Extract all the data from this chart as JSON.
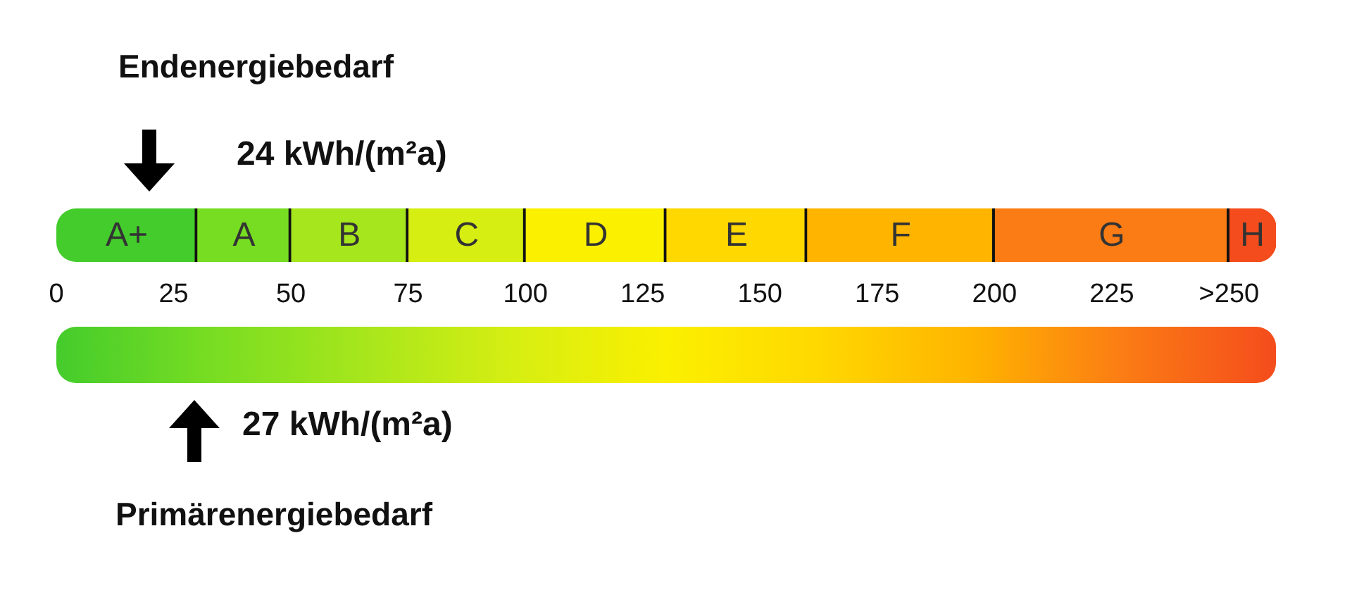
{
  "chart_data": {
    "type": "bar",
    "orientation": "horizontal",
    "stacked": true,
    "categories": [
      null
    ],
    "xlim": [
      0,
      260
    ],
    "xticks": [
      0,
      25,
      50,
      75,
      100,
      125,
      150,
      175,
      200,
      225,
      {
        "value": 250,
        "label": ">250"
      }
    ],
    "series": [
      {
        "name": "A+",
        "color": "#44cc2c",
        "values": [
          30
        ]
      },
      {
        "name": "A",
        "color": "#77dd22",
        "values": [
          20
        ]
      },
      {
        "name": "B",
        "color": "#a6e61c",
        "values": [
          25
        ]
      },
      {
        "name": "C",
        "color": "#d6ee12",
        "values": [
          25
        ]
      },
      {
        "name": "D",
        "color": "#fbf000",
        "values": [
          30
        ]
      },
      {
        "name": "E",
        "color": "#ffd800",
        "values": [
          30
        ]
      },
      {
        "name": "F",
        "color": "#ffb400",
        "values": [
          40
        ]
      },
      {
        "name": "G",
        "color": "#fb7c14",
        "values": [
          50
        ]
      },
      {
        "name": "H",
        "color": "#f44c1c",
        "values": [
          10
        ]
      }
    ],
    "annotations": [
      "Endenergiebedarf",
      "24 kWh/(m²a)",
      "27 kWh/(m²a)",
      "Primärenergiebedarf"
    ]
  }
}
